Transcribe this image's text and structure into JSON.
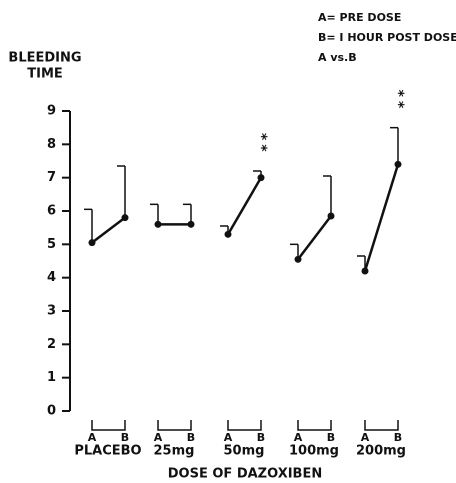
{
  "chart_data": {
    "type": "line",
    "legend": [
      "A= PRE DOSE",
      "B= I HOUR POST DOSE",
      "A vs.B"
    ],
    "ylabel": [
      "BLEEDING",
      "TIME"
    ],
    "xlabel": "DOSE OF DAZOXIBEN",
    "ylim": [
      0,
      9
    ],
    "yticks": [
      0,
      1,
      2,
      3,
      4,
      5,
      6,
      7,
      8,
      9
    ],
    "groups": [
      {
        "name": "PLACEBO",
        "labels": [
          "A",
          "B"
        ],
        "values": [
          5.05,
          5.8
        ],
        "errors": [
          1.0,
          1.55
        ]
      },
      {
        "name": "25mg",
        "labels": [
          "A",
          "B"
        ],
        "values": [
          5.6,
          5.6
        ],
        "errors": [
          0.6,
          0.6
        ]
      },
      {
        "name": "50mg",
        "labels": [
          "A",
          "B"
        ],
        "values": [
          5.3,
          7.0
        ],
        "errors": [
          0.25,
          0.2
        ],
        "annotation": "**"
      },
      {
        "name": "100mg",
        "labels": [
          "A",
          "B"
        ],
        "values": [
          4.55,
          5.85
        ],
        "errors": [
          0.45,
          1.2
        ]
      },
      {
        "name": "200mg",
        "labels": [
          "A",
          "B"
        ],
        "values": [
          4.2,
          7.4
        ],
        "errors": [
          0.45,
          1.1
        ],
        "annotation": "**"
      }
    ]
  }
}
